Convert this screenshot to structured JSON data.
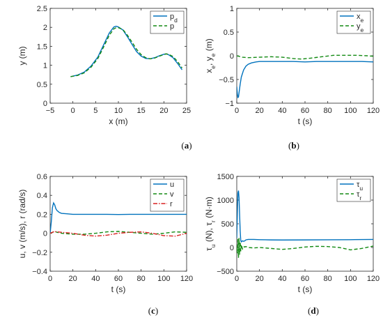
{
  "colors": {
    "blue": "#0072BD",
    "green": "#138A13",
    "red": "#D92020",
    "axis": "#262626"
  },
  "chart_data": [
    {
      "id": "a",
      "type": "line",
      "caption": "a",
      "xlabel": "x (m)",
      "ylabel": "y (m)",
      "xlim": [
        -5,
        25
      ],
      "ylim": [
        0,
        2.5
      ],
      "xticks": [
        "−5",
        "0",
        "5",
        "10",
        "15",
        "20",
        "25"
      ],
      "yticks": [
        "0",
        "0.5",
        "1",
        "1.5",
        "2",
        "2.5"
      ],
      "legend": {
        "position": "top-right",
        "entries": [
          {
            "base": "p",
            "sub": "d",
            "color": "#0072BD",
            "dash": "solid"
          },
          {
            "base": "p",
            "sub": "",
            "color": "#138A13",
            "dash": "dashed"
          }
        ]
      },
      "series": [
        {
          "name": "pd",
          "color": "#0072BD",
          "dash": "solid",
          "x": [
            -0.5,
            1,
            2.5,
            4,
            5.5,
            7,
            8,
            9,
            9.5,
            10,
            11,
            12,
            13,
            14,
            15,
            16,
            17,
            18,
            19,
            20,
            20.5,
            21,
            22,
            23,
            24
          ],
          "y": [
            0.7,
            0.74,
            0.82,
            0.98,
            1.22,
            1.6,
            1.85,
            2.01,
            2.03,
            2.01,
            1.93,
            1.75,
            1.55,
            1.36,
            1.24,
            1.18,
            1.17,
            1.2,
            1.25,
            1.29,
            1.3,
            1.28,
            1.2,
            1.05,
            0.88
          ]
        },
        {
          "name": "p",
          "color": "#138A13",
          "dash": "dashed",
          "x": [
            -0.5,
            1,
            2.5,
            4,
            5.5,
            7,
            8,
            9,
            9.5,
            10,
            11,
            12,
            13,
            14,
            15,
            16,
            17,
            18,
            19,
            20,
            20.5,
            21,
            22,
            23,
            24
          ],
          "y": [
            0.7,
            0.73,
            0.8,
            0.95,
            1.18,
            1.54,
            1.79,
            1.96,
            1.99,
            1.99,
            1.94,
            1.79,
            1.61,
            1.42,
            1.28,
            1.2,
            1.17,
            1.19,
            1.24,
            1.28,
            1.3,
            1.29,
            1.23,
            1.1,
            0.93
          ]
        }
      ]
    },
    {
      "id": "b",
      "type": "line",
      "caption": "b",
      "xlabel": "t (s)",
      "ylabel": {
        "parts": [
          {
            "base": "x",
            "sub": "e"
          },
          {
            "sep": ", "
          },
          {
            "base": "y",
            "sub": "e"
          },
          {
            "sep": " (m)"
          }
        ]
      },
      "xlim": [
        0,
        120
      ],
      "ylim": [
        -1,
        1
      ],
      "xticks": [
        "0",
        "20",
        "40",
        "60",
        "80",
        "100",
        "120"
      ],
      "yticks": [
        "−1",
        "−0.5",
        "0",
        "0.5",
        "1"
      ],
      "legend": {
        "position": "top-right",
        "entries": [
          {
            "base": "x",
            "sub": "e",
            "color": "#0072BD",
            "dash": "solid"
          },
          {
            "base": "y",
            "sub": "e",
            "color": "#138A13",
            "dash": "dashed"
          }
        ]
      },
      "series": [
        {
          "name": "xe",
          "color": "#0072BD",
          "dash": "solid",
          "x": [
            0,
            0.5,
            1,
            1.5,
            2,
            3,
            4,
            6,
            8,
            10,
            13,
            17,
            20,
            30,
            40,
            50,
            60,
            70,
            80,
            90,
            100,
            110,
            120
          ],
          "y": [
            -0.65,
            -0.8,
            -0.88,
            -0.87,
            -0.78,
            -0.6,
            -0.45,
            -0.3,
            -0.22,
            -0.18,
            -0.15,
            -0.13,
            -0.12,
            -0.12,
            -0.12,
            -0.12,
            -0.13,
            -0.12,
            -0.12,
            -0.12,
            -0.12,
            -0.12,
            -0.13
          ]
        },
        {
          "name": "ye",
          "color": "#138A13",
          "dash": "dashed",
          "x": [
            0,
            5,
            10,
            20,
            30,
            40,
            50,
            57,
            65,
            75,
            85,
            95,
            105,
            115,
            120
          ],
          "y": [
            0.0,
            -0.03,
            -0.04,
            -0.03,
            -0.02,
            -0.03,
            -0.06,
            -0.07,
            -0.05,
            -0.02,
            0.01,
            0.01,
            0.01,
            0.0,
            -0.01
          ]
        }
      ]
    },
    {
      "id": "c",
      "type": "line",
      "caption": "c",
      "xlabel": "t (s)",
      "ylabel": "u, v (m/s), r (rad/s)",
      "xlim": [
        0,
        120
      ],
      "ylim": [
        -0.4,
        0.6
      ],
      "xticks": [
        "0",
        "20",
        "40",
        "60",
        "80",
        "100",
        "120"
      ],
      "yticks": [
        "−0.4",
        "−0.2",
        "0",
        "0.2",
        "0.4",
        "0.6"
      ],
      "legend": {
        "position": "top-right",
        "entries": [
          {
            "base": "u",
            "sub": "",
            "color": "#0072BD",
            "dash": "solid"
          },
          {
            "base": "v",
            "sub": "",
            "color": "#138A13",
            "dash": "dashed"
          },
          {
            "base": "r",
            "sub": "",
            "color": "#D92020",
            "dash": "dashdot"
          }
        ]
      },
      "series": [
        {
          "name": "u",
          "color": "#0072BD",
          "dash": "solid",
          "x": [
            0,
            1,
            2,
            3,
            4,
            5,
            6,
            8,
            10,
            15,
            20,
            30,
            40,
            50,
            60,
            70,
            80,
            90,
            100,
            110,
            120
          ],
          "y": [
            0.0,
            0.12,
            0.27,
            0.32,
            0.3,
            0.26,
            0.24,
            0.22,
            0.21,
            0.205,
            0.2,
            0.2,
            0.2,
            0.2,
            0.198,
            0.2,
            0.2,
            0.2,
            0.2,
            0.2,
            0.2
          ]
        },
        {
          "name": "v",
          "color": "#138A13",
          "dash": "dashed",
          "x": [
            0,
            2,
            4,
            6,
            10,
            20,
            30,
            40,
            50,
            60,
            70,
            80,
            90,
            100,
            110,
            120
          ],
          "y": [
            0.0,
            0.01,
            0.02,
            0.01,
            0.0,
            -0.01,
            -0.01,
            0.0,
            0.015,
            0.02,
            0.01,
            0.0,
            -0.01,
            0.0,
            0.015,
            0.01
          ]
        },
        {
          "name": "r",
          "color": "#D92020",
          "dash": "dashdot",
          "x": [
            0,
            2,
            4,
            6,
            10,
            20,
            30,
            40,
            50,
            60,
            70,
            80,
            90,
            100,
            110,
            120
          ],
          "y": [
            0.0,
            0.01,
            0.02,
            0.015,
            0.01,
            0.0,
            -0.02,
            -0.03,
            -0.02,
            0.0,
            0.01,
            0.015,
            0.0,
            -0.025,
            -0.03,
            0.0
          ]
        }
      ]
    },
    {
      "id": "d",
      "type": "line",
      "caption": "d",
      "xlabel": "t (s)",
      "ylabel": {
        "parts": [
          {
            "greek": "τ",
            "sub": "u"
          },
          {
            "sep": " (N), "
          },
          {
            "greek": "τ",
            "sub": "r"
          },
          {
            "sep": " (N·m)"
          }
        ]
      },
      "xlim": [
        0,
        120
      ],
      "ylim": [
        -500,
        1500
      ],
      "xticks": [
        "0",
        "20",
        "40",
        "60",
        "80",
        "100",
        "120"
      ],
      "yticks": [
        "−500",
        "0",
        "500",
        "1000",
        "1500"
      ],
      "legend": {
        "position": "top-right",
        "entries": [
          {
            "greek": "τ",
            "sub": "u",
            "color": "#0072BD",
            "dash": "solid"
          },
          {
            "greek": "τ",
            "sub": "r",
            "color": "#138A13",
            "dash": "dashed"
          }
        ]
      },
      "series": [
        {
          "name": "tau_u",
          "color": "#0072BD",
          "dash": "solid",
          "x": [
            0,
            0.5,
            1,
            1.5,
            2,
            2.5,
            3,
            3.5,
            4,
            5,
            6,
            7,
            8,
            10,
            15,
            20,
            30,
            40,
            60,
            80,
            100,
            120
          ],
          "y": [
            200,
            700,
            1150,
            1200,
            1050,
            700,
            350,
            150,
            120,
            140,
            130,
            140,
            160,
            170,
            170,
            165,
            160,
            158,
            160,
            162,
            165,
            170
          ]
        },
        {
          "name": "tau_r",
          "color": "#138A13",
          "dash": "dashed",
          "x": [
            0,
            0.5,
            1,
            1.5,
            2,
            2.5,
            3,
            3.5,
            4,
            5,
            6,
            7,
            8,
            10,
            15,
            20,
            30,
            40,
            50,
            60,
            70,
            80,
            90,
            100,
            110,
            120
          ],
          "y": [
            0,
            -120,
            180,
            -220,
            200,
            -150,
            120,
            -80,
            60,
            -30,
            20,
            10,
            20,
            0,
            -10,
            0,
            -20,
            -40,
            -20,
            10,
            25,
            20,
            0,
            -50,
            -20,
            30
          ]
        }
      ]
    }
  ]
}
